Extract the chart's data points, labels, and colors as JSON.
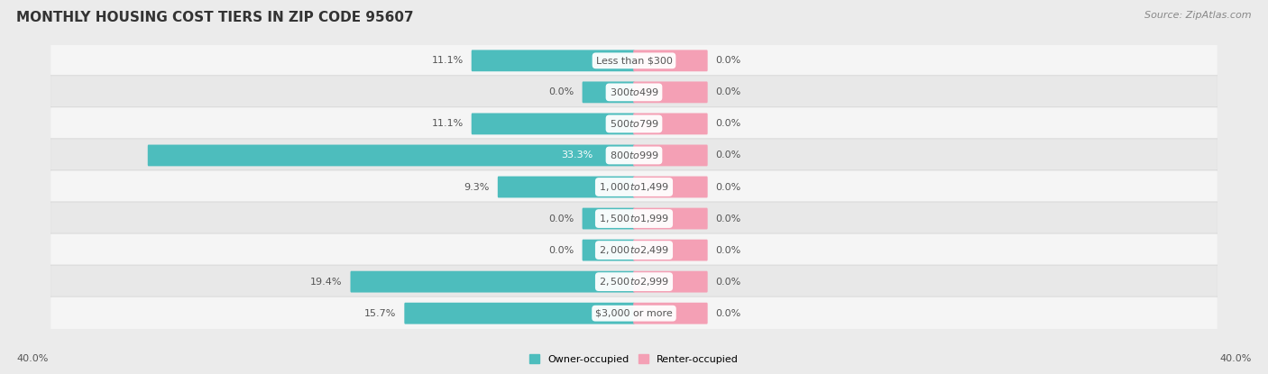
{
  "title": "MONTHLY HOUSING COST TIERS IN ZIP CODE 95607",
  "source": "Source: ZipAtlas.com",
  "categories": [
    "Less than $300",
    "$300 to $499",
    "$500 to $799",
    "$800 to $999",
    "$1,000 to $1,499",
    "$1,500 to $1,999",
    "$2,000 to $2,499",
    "$2,500 to $2,999",
    "$3,000 or more"
  ],
  "owner_values": [
    11.1,
    0.0,
    11.1,
    33.3,
    9.3,
    0.0,
    0.0,
    19.4,
    15.7
  ],
  "renter_values": [
    0.0,
    0.0,
    0.0,
    0.0,
    0.0,
    0.0,
    0.0,
    0.0,
    0.0
  ],
  "renter_min_display": 5.0,
  "owner_min_display": 3.5,
  "owner_color": "#4dbdbd",
  "renter_color": "#f4a0b5",
  "label_color_dark": "#555555",
  "label_color_light": "#ffffff",
  "axis_label_left": "40.0%",
  "axis_label_right": "40.0%",
  "xlim": 40.0,
  "background_color": "#ebebeb",
  "row_color_light": "#f5f5f5",
  "row_color_dark": "#e8e8e8",
  "bar_height": 0.58,
  "legend_owner": "Owner-occupied",
  "legend_renter": "Renter-occupied",
  "title_fontsize": 11,
  "source_fontsize": 8,
  "label_fontsize": 8,
  "value_fontsize": 8
}
